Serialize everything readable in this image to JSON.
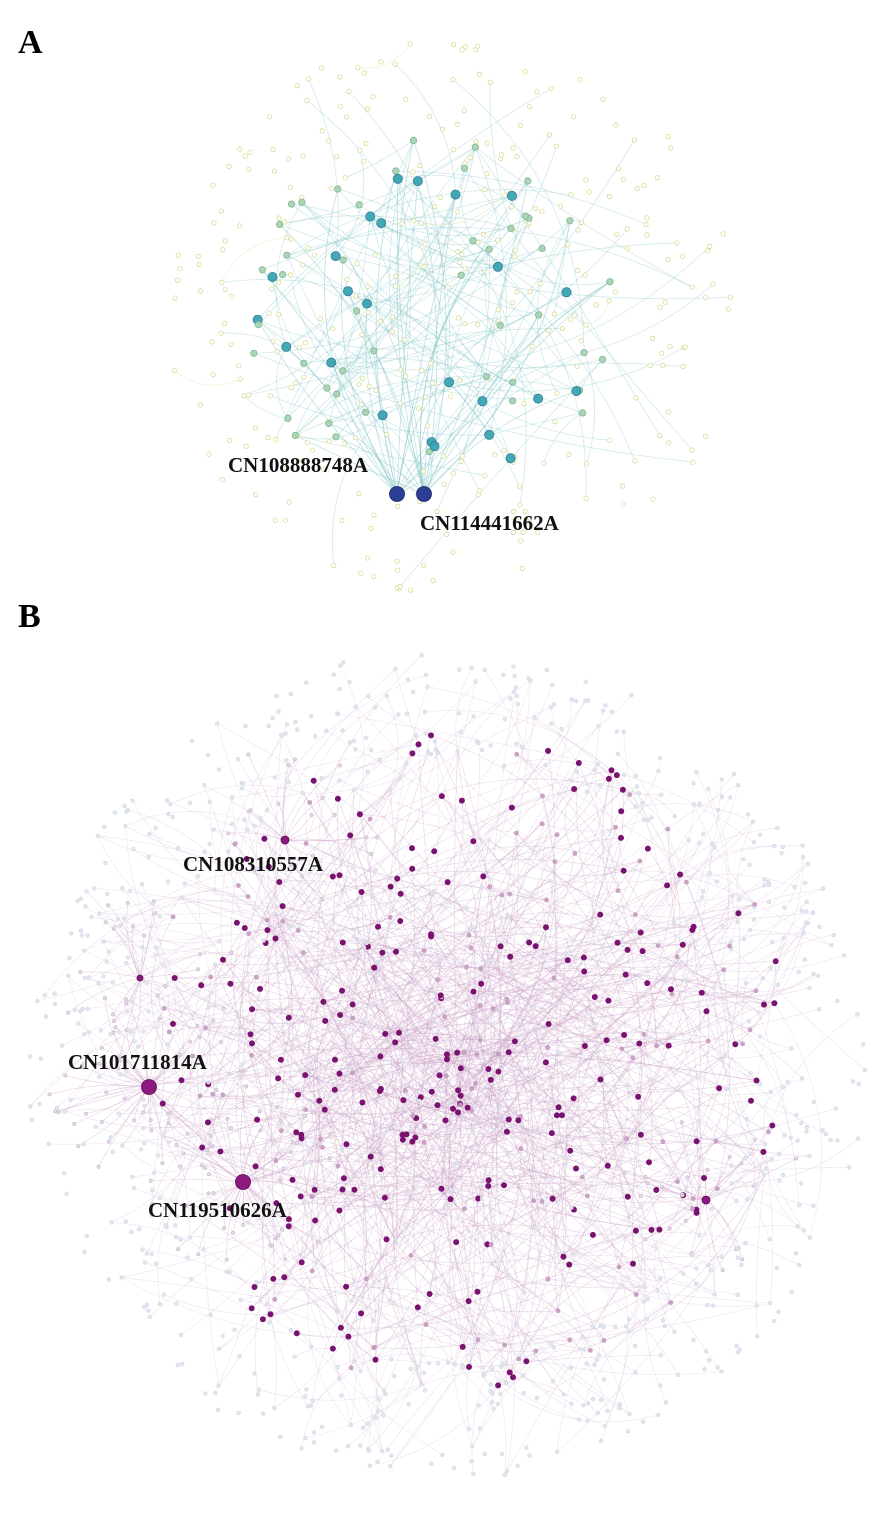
{
  "panels": [
    {
      "letter": "A",
      "palette": {
        "edge": "#7fc3c6",
        "hub": "#2b3f96",
        "mid": "#3aa3b4",
        "light": "#a9d3b2",
        "faint": "#e2e8a9"
      },
      "labels": [
        "CN108888748A",
        "CN114441662A"
      ]
    },
    {
      "letter": "B",
      "palette": {
        "edge": "#c79ac4",
        "hub": "#8b1a7e",
        "mid": "#7a1370",
        "light": "#c59bc2",
        "faint": "#dfe6ef"
      },
      "labels": [
        "CN108310557A",
        "CN101711814A",
        "CN119510626A"
      ]
    }
  ]
}
